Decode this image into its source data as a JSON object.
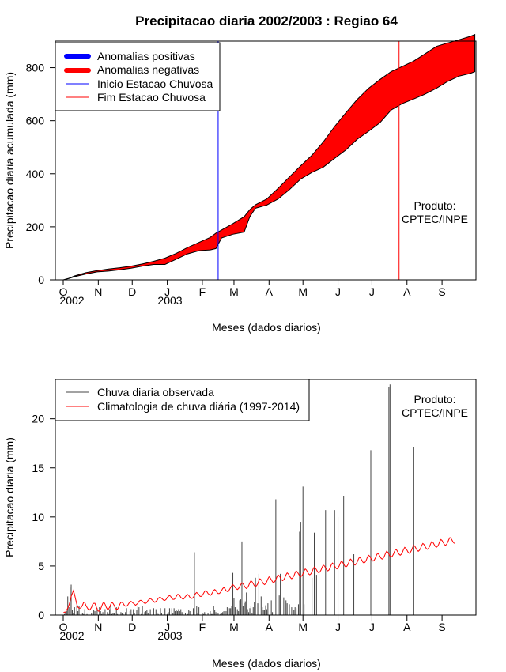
{
  "chart_data": [
    {
      "type": "area",
      "title": "Precipitacao diaria 2002/2003 : Regiao 64",
      "xlabel": "Meses (dados diarios)",
      "ylabel": "Precipitacao diaria acumulada (mm)",
      "ylim": [
        0,
        900
      ],
      "yticks": [
        0,
        200,
        400,
        600,
        800
      ],
      "xlim_days": [
        -7,
        365
      ],
      "month_ticks": [
        "O",
        "N",
        "D",
        "J",
        "F",
        "M",
        "A",
        "M",
        "J",
        "J",
        "A",
        "S"
      ],
      "year_labels": [
        "2002",
        "2003"
      ],
      "legend": [
        "Anomalias positivas",
        "Anomalias negativas",
        "Inicio Estacao Chuvosa",
        "Fim Estacao Chuvosa"
      ],
      "legend_colors": [
        "#0000ff",
        "#ff0000",
        "#0000ff",
        "#ff0000"
      ],
      "annotation": [
        "Produto:",
        "CPTEC/INPE"
      ],
      "season_start_day": 137,
      "season_end_day": 297,
      "days": [
        0,
        5,
        10,
        20,
        30,
        40,
        50,
        60,
        70,
        80,
        90,
        100,
        110,
        120,
        130,
        135,
        140,
        150,
        160,
        165,
        170,
        180,
        190,
        200,
        210,
        220,
        230,
        240,
        250,
        260,
        270,
        280,
        290,
        300,
        310,
        320,
        330,
        340,
        350,
        360,
        364
      ],
      "climatology_accum": [
        0,
        6,
        15,
        27,
        35,
        41,
        46,
        52,
        60,
        70,
        82,
        100,
        122,
        141,
        160,
        176,
        188,
        212,
        238,
        265,
        283,
        305,
        345,
        388,
        430,
        470,
        520,
        578,
        630,
        680,
        722,
        755,
        785,
        805,
        825,
        852,
        880,
        893,
        905,
        918,
        925
      ],
      "observed_accum": [
        0,
        5,
        12,
        22,
        30,
        33,
        38,
        44,
        52,
        58,
        58,
        78,
        98,
        110,
        113,
        118,
        158,
        172,
        180,
        238,
        270,
        282,
        305,
        340,
        380,
        405,
        425,
        458,
        490,
        530,
        560,
        592,
        640,
        665,
        682,
        700,
        722,
        748,
        768,
        778,
        785
      ]
    },
    {
      "type": "bar",
      "xlabel": "Meses (dados diarios)",
      "ylabel": "Precipitacao diaria (mm)",
      "ylim": [
        0,
        24
      ],
      "yticks": [
        0,
        5,
        10,
        15,
        20
      ],
      "xlim_days": [
        -7,
        365
      ],
      "month_ticks": [
        "O",
        "N",
        "D",
        "J",
        "F",
        "M",
        "A",
        "M",
        "J",
        "J",
        "A",
        "S"
      ],
      "year_labels": [
        "2002",
        "2003"
      ],
      "legend": [
        "Chuva diaria observada",
        "Climatologia de chuva diária (1997-2014)"
      ],
      "legend_colors": [
        "#444444",
        "#ff0000"
      ],
      "annotation": [
        "Produto:",
        "CPTEC/INPE"
      ],
      "series": [
        {
          "name": "Chuva diaria observada",
          "values": [
            0.0,
            0.1,
            0.3,
            0.4,
            1.9,
            0.8,
            2.8,
            3.1,
            0.5,
            0.2,
            0.8,
            0.0,
            1.0,
            0.4,
            0.9,
            0.0,
            0.0,
            0.2,
            0.1,
            0.6,
            0.0,
            0.1,
            0.0,
            0.0,
            0.0,
            0.2,
            0.0,
            0.5,
            0.4,
            0.2,
            0.7,
            0.0,
            0.8,
            0.4,
            0.1,
            0.3,
            0.6,
            0.6,
            0.0,
            0.3,
            0.1,
            0.6,
            0.9,
            0.1,
            0.2,
            0.2,
            0.0,
            0.8,
            0.1,
            0.0,
            0.0,
            0.3,
            0.2,
            0.1,
            0.0,
            0.3,
            0.7,
            0.0,
            0.0,
            0.4,
            0.6,
            0.0,
            0.6,
            0.2,
            0.0,
            0.5,
            0.9,
            0.8,
            0.0,
            0.1,
            0.9,
            0.0,
            0.3,
            0.4,
            0.5,
            0.2,
            0.0,
            0.6,
            0.0,
            0.0,
            0.7,
            0.0,
            0.6,
            0.2,
            0.1,
            0.0,
            0.7,
            0.2,
            0.0,
            0.0,
            0.7,
            0.0,
            0.1,
            0.3,
            0.7,
            0.0,
            0.7,
            0.2,
            0.7,
            0.4,
            0.5,
            0.4,
            0.6,
            0.4,
            0.6,
            0.3,
            0.1,
            0.0,
            0.2,
            0.0,
            0.1,
            0.5,
            0.4,
            0.0,
            0.0,
            0.7,
            6.4,
            0.0,
            0.9,
            0.2,
            0.8,
            0.0,
            0.0,
            0.2,
            0.1,
            0.3,
            0.1,
            0.0,
            0.2,
            0.0,
            0.4,
            0.1,
            0.1,
            0.9,
            0.5,
            0.3,
            0.0,
            0.2,
            0.0,
            0.1,
            0.2,
            0.3,
            0.4,
            0.6,
            0.4,
            0.8,
            0.0,
            0.7,
            0.7,
            0.9,
            4.3,
            1.7,
            0.8,
            0.0,
            0.6,
            0.4,
            1.5,
            1.6,
            7.5,
            0.9,
            1.2,
            1.4,
            2.3,
            0.6,
            0.3,
            0.7,
            0.9,
            0.2,
            0.8,
            1.3,
            3.8,
            0.0,
            1.2,
            4.2,
            0.0,
            1.9,
            0.8,
            0.5,
            0.5,
            1.0,
            0.6,
            1.2,
            0.0,
            0.0,
            1.5,
            0.3,
            0.0,
            0.0,
            11.8,
            0.0,
            0.0,
            2.0,
            4.2,
            0.0,
            0.0,
            1.8,
            0.0,
            1.5,
            1.2,
            0.0,
            1.1,
            0.0,
            0.8,
            0.0,
            0.5,
            0.8,
            0.7,
            0.0,
            1.1,
            8.5,
            9.5,
            0.0,
            13.1,
            1.1,
            0.0,
            0.0,
            0.0,
            0.0,
            0.0,
            0.0,
            3.8,
            0.0,
            8.4,
            0.0,
            4.1,
            0.0,
            0.0,
            0.0,
            0.0,
            0.0,
            0.0,
            0.0,
            10.7,
            0.0,
            0.0,
            0.0,
            0.0,
            0.0,
            0.0,
            0.0,
            10.7,
            0.0,
            0.0,
            10.0,
            0.0,
            0.0,
            0.0,
            0.0,
            12.1,
            0.0,
            0.0,
            0.0,
            0.0,
            0.0,
            0.0,
            0.0,
            0.0,
            6.2,
            0.0,
            0.0,
            0.0,
            0.0,
            0.0,
            0.0,
            0.0,
            0.0,
            0.0,
            0.0,
            0.0,
            0.0,
            0.0,
            0.0,
            16.8,
            0.0,
            0.0,
            0.0,
            0.0,
            0.0,
            0.0,
            0.0,
            0.0,
            0.0,
            0.0,
            0.0,
            0.0,
            0.0,
            0.0,
            0.0,
            23.2,
            23.5,
            0.0,
            0.0,
            0.0,
            0.0,
            0.0,
            0.0,
            0.0,
            0.0,
            0.0,
            0.0,
            0.0,
            0.0,
            0.0,
            0.0,
            0.0,
            0.0,
            0.0,
            0.0,
            0.0,
            0.0,
            17.1,
            0.0,
            0.0,
            0.0,
            0.0,
            0.0,
            0.0,
            0.0,
            0.0,
            0.0,
            0.0,
            0.0,
            0.0,
            0.0,
            0.0,
            0.0,
            0.0,
            0.0,
            0.0,
            0.0,
            0.0,
            0.0,
            0.0,
            0.0,
            0.0,
            0.0,
            0.0,
            0.0,
            0.0,
            0.0,
            0.0,
            0.0,
            0.0,
            0.0,
            0.0,
            0.0,
            0.0,
            0.0,
            0.0,
            0.0,
            0.0,
            0.0,
            0.0,
            0.0,
            0.0,
            0.0,
            0.0,
            0.0,
            0.0,
            0.0,
            0.0,
            0.0,
            0.0,
            0.0,
            0.0,
            0.0,
            0.0,
            0.0,
            0.0,
            0.0,
            0.0,
            0.0,
            0.0,
            0.0,
            0.0,
            0.0,
            0.0,
            0.0
          ]
        },
        {
          "name": "Climatologia de chuva diária (1997-2014)",
          "values": [
            0.2,
            0.3,
            0.3,
            0.5,
            0.7,
            1.0,
            1.4,
            1.9,
            2.2,
            2.5,
            2.1,
            1.6,
            1.1,
            0.8,
            0.7,
            0.7,
            0.8,
            1.0,
            1.3,
            1.3,
            1.0,
            0.8,
            0.6,
            0.5,
            0.6,
            0.8,
            1.1,
            1.2,
            1.2,
            0.9,
            0.6,
            0.4,
            0.4,
            0.6,
            0.9,
            1.2,
            1.3,
            1.1,
            0.8,
            0.6,
            0.6,
            0.8,
            1.1,
            1.3,
            1.2,
            1.0,
            0.7,
            0.6,
            0.6,
            0.8,
            1.1,
            1.3,
            1.3,
            1.2,
            1.0,
            0.9,
            0.9,
            1.0,
            1.2,
            1.3,
            1.4,
            1.3,
            1.2,
            1.1,
            1.0,
            1.1,
            1.2,
            1.4,
            1.5,
            1.5,
            1.4,
            1.3,
            1.2,
            1.2,
            1.3,
            1.5,
            1.6,
            1.7,
            1.6,
            1.5,
            1.4,
            1.3,
            1.4,
            1.5,
            1.7,
            1.8,
            1.8,
            1.7,
            1.6,
            1.5,
            1.5,
            1.6,
            1.8,
            1.9,
            2.0,
            1.9,
            1.7,
            1.6,
            1.6,
            1.7,
            1.9,
            2.1,
            2.1,
            2.0,
            1.8,
            1.7,
            1.6,
            1.7,
            1.9,
            2.0,
            2.1,
            2.0,
            1.8,
            1.7,
            1.7,
            1.8,
            2.0,
            2.2,
            2.3,
            2.2,
            2.1,
            1.9,
            1.9,
            2.0,
            2.2,
            2.4,
            2.5,
            2.4,
            2.2,
            2.1,
            2.0,
            2.1,
            2.3,
            2.5,
            2.6,
            2.5,
            2.3,
            2.2,
            2.2,
            2.3,
            2.5,
            2.7,
            2.8,
            2.7,
            2.5,
            2.4,
            2.4,
            2.6,
            2.8,
            3.0,
            3.1,
            3.0,
            2.8,
            2.7,
            2.6,
            2.7,
            2.9,
            3.1,
            3.3,
            3.2,
            3.0,
            2.8,
            2.7,
            2.8,
            3.0,
            3.3,
            3.5,
            3.4,
            3.2,
            3.0,
            2.9,
            3.0,
            3.2,
            3.5,
            3.7,
            3.6,
            3.4,
            3.2,
            3.1,
            3.2,
            3.4,
            3.7,
            3.9,
            3.8,
            3.6,
            3.4,
            3.3,
            3.4,
            3.6,
            3.9,
            4.1,
            4.0,
            3.8,
            3.6,
            3.5,
            3.6,
            3.8,
            4.1,
            4.3,
            4.2,
            4.0,
            3.8,
            3.7,
            3.8,
            4.0,
            4.3,
            4.5,
            4.4,
            4.2,
            4.0,
            3.9,
            4.0,
            4.2,
            4.5,
            4.7,
            4.6,
            4.4,
            4.2,
            4.1,
            4.2,
            4.4,
            4.7,
            4.9,
            4.8,
            4.6,
            4.4,
            4.3,
            4.4,
            4.6,
            4.9,
            5.1,
            5.0,
            4.8,
            4.6,
            4.5,
            4.6,
            4.8,
            5.1,
            5.3,
            5.2,
            5.0,
            4.8,
            4.7,
            4.8,
            5.0,
            5.3,
            5.5,
            5.4,
            5.2,
            5.0,
            4.9,
            5.0,
            5.2,
            5.5,
            5.7,
            5.6,
            5.4,
            5.2,
            5.1,
            5.2,
            5.4,
            5.7,
            5.9,
            5.8,
            5.6,
            5.4,
            5.3,
            5.4,
            5.6,
            5.9,
            6.1,
            6.0,
            5.8,
            5.6,
            5.5,
            5.6,
            5.8,
            6.1,
            6.3,
            6.2,
            6.0,
            5.8,
            5.7,
            5.8,
            6.0,
            6.3,
            6.5,
            6.4,
            6.2,
            6.0,
            5.9,
            6.0,
            6.2,
            6.5,
            6.7,
            6.6,
            6.4,
            6.2,
            6.1,
            6.2,
            6.4,
            6.7,
            6.9,
            6.8,
            6.6,
            6.4,
            6.3,
            6.4,
            6.6,
            6.9,
            7.1,
            7.0,
            6.8,
            6.6,
            6.5,
            6.6,
            6.8,
            7.1,
            7.3,
            7.2,
            7.0,
            6.8,
            6.7,
            6.8,
            7.0,
            7.3,
            7.5,
            7.4,
            7.2,
            7.0,
            6.9,
            7.0,
            7.2,
            7.5,
            7.7,
            7.6,
            7.4,
            7.2,
            7.1,
            7.2,
            7.4,
            7.7,
            7.9,
            7.8,
            7.6,
            7.4,
            7.3
          ]
        }
      ]
    }
  ]
}
